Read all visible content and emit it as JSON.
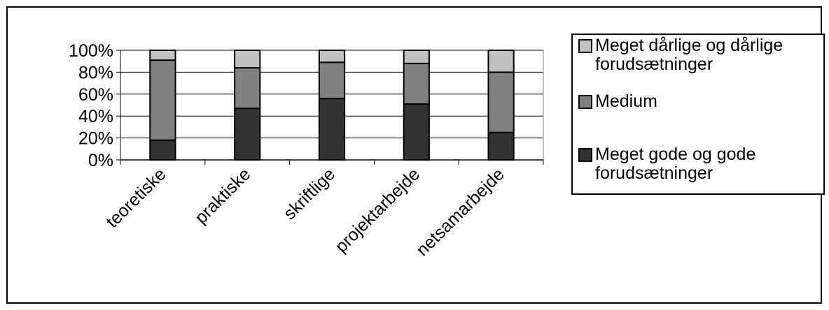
{
  "chart_data": {
    "type": "bar",
    "stacked": true,
    "percent": true,
    "categories": [
      "teoretiske",
      "praktiske",
      "skriftlige",
      "projektarbejde",
      "netsamarbejde"
    ],
    "series": [
      {
        "name": "Meget gode og gode forudsætninger",
        "color": "#333333",
        "values": [
          18,
          47,
          56,
          51,
          25
        ]
      },
      {
        "name": "Medium",
        "color": "#808080",
        "values": [
          73,
          37,
          33,
          37,
          55
        ]
      },
      {
        "name": "Meget dårlige og dårlige forudsætninger",
        "color": "#c0c0c0",
        "values": [
          9,
          16,
          11,
          12,
          20
        ]
      }
    ],
    "ylim": [
      0,
      100
    ],
    "yticks": [
      "0%",
      "20%",
      "40%",
      "60%",
      "80%",
      "100%"
    ],
    "grid": true,
    "legend_position": "right",
    "legend_order": [
      "Meget dårlige og dårlige forudsætninger",
      "Medium",
      "Meget gode og gode forudsætninger"
    ]
  }
}
